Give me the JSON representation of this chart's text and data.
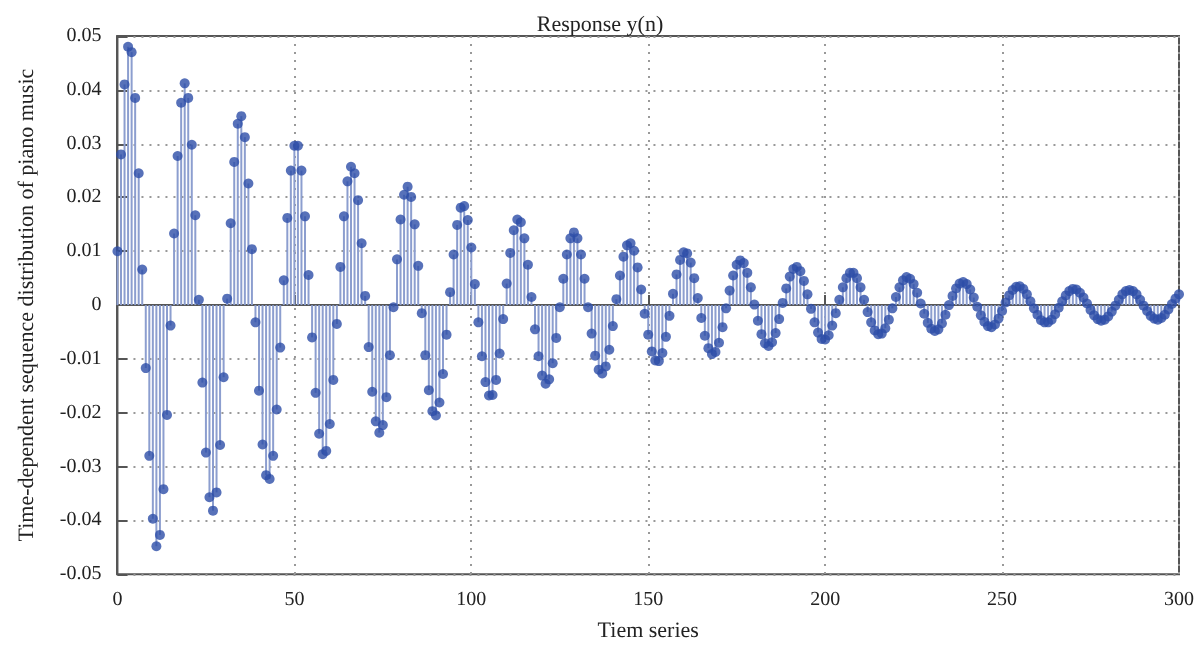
{
  "chart_data": {
    "type": "lollipop",
    "title": "Response y(n)",
    "xlabel": "Tiem series",
    "ylabel": "Time-dependent sequence distribution of piano music",
    "x": [
      0,
      1,
      2,
      3,
      4,
      5,
      6,
      7,
      8,
      9,
      10,
      11,
      12,
      13,
      14,
      15,
      16,
      17,
      18,
      19,
      20,
      21,
      22,
      23,
      24,
      25,
      26,
      27,
      28,
      29,
      30,
      31,
      32,
      33,
      34,
      35,
      36,
      37,
      38,
      39,
      40,
      41,
      42,
      43,
      44,
      45,
      46,
      47,
      48,
      49,
      50,
      51,
      52,
      53,
      54,
      55,
      56,
      57,
      58,
      59,
      60,
      61,
      62,
      63,
      64,
      65,
      66,
      67,
      68,
      69,
      70,
      71,
      72,
      73,
      74,
      75,
      76,
      77,
      78,
      79,
      80,
      81,
      82,
      83,
      84,
      85,
      86,
      87,
      88,
      89,
      90,
      91,
      92,
      93,
      94,
      95,
      96,
      97,
      98,
      99,
      100,
      101,
      102,
      103,
      104,
      105,
      106,
      107,
      108,
      109,
      110,
      111,
      112,
      113,
      114,
      115,
      116,
      117,
      118,
      119,
      120,
      121,
      122,
      123,
      124,
      125,
      126,
      127,
      128,
      129,
      130,
      131,
      132,
      133,
      134,
      135,
      136,
      137,
      138,
      139,
      140,
      141,
      142,
      143,
      144,
      145,
      146,
      147,
      148,
      149,
      150,
      151,
      152,
      153,
      154,
      155,
      156,
      157,
      158,
      159,
      160,
      161,
      162,
      163,
      164,
      165,
      166,
      167,
      168,
      169,
      170,
      171,
      172,
      173,
      174,
      175,
      176,
      177,
      178,
      179,
      180,
      181,
      182,
      183,
      184,
      185,
      186,
      187,
      188,
      189,
      190,
      191,
      192,
      193,
      194,
      195,
      196,
      197,
      198,
      199,
      200,
      201,
      202,
      203,
      204,
      205,
      206,
      207,
      208,
      209,
      210,
      211,
      212,
      213,
      214,
      215,
      216,
      217,
      218,
      219,
      220,
      221,
      222,
      223,
      224,
      225,
      226,
      227,
      228,
      229,
      230,
      231,
      232,
      233,
      234,
      235,
      236,
      237,
      238,
      239,
      240,
      241,
      242,
      243,
      244,
      245,
      246,
      247,
      248,
      249,
      250,
      251,
      252,
      253,
      254,
      255,
      256,
      257,
      258,
      259,
      260,
      261,
      262,
      263,
      264,
      265,
      266,
      267,
      268,
      269,
      270,
      271,
      272,
      273,
      274,
      275,
      276,
      277,
      278,
      279,
      280,
      281,
      282,
      283,
      284,
      285,
      286,
      287,
      288,
      289,
      290,
      291,
      292,
      293,
      294,
      295,
      296,
      297,
      298,
      299,
      300
    ],
    "values": [
      0.01,
      0.028,
      0.041,
      0.048,
      0.047,
      0.0385,
      0.0245,
      0.0066,
      -0.0117,
      -0.028,
      -0.0397,
      -0.0448,
      -0.0427,
      -0.0342,
      -0.0204,
      -0.0038,
      0.0133,
      0.0277,
      0.0376,
      0.0412,
      0.0385,
      0.0298,
      0.0167,
      0.001,
      -0.0144,
      -0.0274,
      -0.0357,
      -0.0382,
      -0.0348,
      -0.026,
      -0.0134,
      0.0012,
      0.0152,
      0.0266,
      0.0337,
      0.0351,
      0.0312,
      0.0226,
      0.0104,
      -0.0032,
      -0.0159,
      -0.0259,
      -0.0316,
      -0.0323,
      -0.028,
      -0.0194,
      -0.0079,
      0.0046,
      0.0162,
      0.025,
      0.0296,
      0.0296,
      0.025,
      0.0165,
      0.0056,
      -0.006,
      -0.0163,
      -0.0239,
      -0.0277,
      -0.0271,
      -0.0221,
      -0.0139,
      -0.0035,
      0.0071,
      0.0165,
      0.023,
      0.0257,
      0.0245,
      0.0195,
      0.0115,
      0.0017,
      -0.0078,
      -0.0161,
      -0.0216,
      -0.0237,
      -0.0223,
      -0.0171,
      -0.0093,
      -0.0004,
      0.0085,
      0.0159,
      0.0205,
      0.022,
      0.0201,
      0.015,
      0.0073,
      -0.0015,
      -0.0093,
      -0.0158,
      -0.0197,
      -0.0205,
      -0.0181,
      -0.0128,
      -0.0055,
      0.0024,
      0.0094,
      0.0149,
      0.0181,
      0.0184,
      0.0158,
      0.0107,
      0.0039,
      -0.0032,
      -0.0095,
      -0.0143,
      -0.0168,
      -0.0167,
      -0.0139,
      -0.009,
      -0.0026,
      0.004,
      0.0097,
      0.0139,
      0.0159,
      0.0154,
      0.0124,
      0.0075,
      0.0015,
      -0.0045,
      -0.0095,
      -0.0131,
      -0.0146,
      -0.0138,
      -0.0108,
      -0.0061,
      -0.0004,
      0.0049,
      0.0094,
      0.0124,
      0.0135,
      0.0124,
      0.0094,
      0.0049,
      -0.0004,
      -0.0053,
      -0.0094,
      -0.012,
      -0.0127,
      -0.0114,
      -0.0083,
      -0.0039,
      0.0011,
      0.0055,
      0.009,
      0.0111,
      0.0115,
      0.0101,
      0.007,
      0.0029,
      -0.0016,
      -0.0055,
      -0.0086,
      -0.0103,
      -0.0104,
      -0.0089,
      -0.0059,
      -0.002,
      0.0021,
      0.0057,
      0.0084,
      0.0098,
      0.0096,
      0.0079,
      0.005,
      0.0013,
      -0.0024,
      -0.0057,
      -0.008,
      -0.0091,
      -0.0087,
      -0.007,
      -0.0041,
      -0.0006,
      0.0027,
      0.0055,
      0.0075,
      0.0083,
      0.0078,
      0.006,
      0.0033,
      0.0001,
      -0.0029,
      -0.0054,
      -0.0071,
      -0.0076,
      -0.0069,
      -0.0052,
      -0.0026,
      0.0004,
      0.0031,
      0.0053,
      0.0067,
      0.0071,
      0.0063,
      0.0045,
      0.002,
      -0.0007,
      -0.0032,
      -0.0051,
      -0.0063,
      -0.0064,
      -0.0056,
      -0.0038,
      -0.0015,
      0.001,
      0.0033,
      0.005,
      0.006,
      0.006,
      0.005,
      0.0033,
      0.001,
      -0.0013,
      -0.0032,
      -0.0047,
      -0.0054,
      -0.0053,
      -0.0043,
      -0.0027,
      -0.0006,
      0.0015,
      0.0033,
      0.0046,
      0.0052,
      0.0049,
      0.0039,
      0.0023,
      0.0003,
      -0.0016,
      -0.0033,
      -0.0044,
      -0.0048,
      -0.0045,
      -0.0034,
      -0.0018,
      0.0,
      0.0017,
      0.0031,
      0.004,
      0.0043,
      0.0039,
      0.0029,
      0.0014,
      -0.0003,
      -0.0019,
      -0.0031,
      -0.0039,
      -0.0041,
      -0.0036,
      -0.0025,
      -0.0011,
      0.0005,
      0.0018,
      0.0028,
      0.0034,
      0.0035,
      0.003,
      0.002,
      0.0007,
      -0.0006,
      -0.0018,
      -0.0028,
      -0.0032,
      -0.0032,
      -0.0027,
      -0.0017,
      -0.0005,
      0.0007,
      0.0018,
      0.0026,
      0.003,
      0.0029,
      0.0023,
      0.0014,
      0.0003,
      -0.0009,
      -0.0019,
      -0.0026,
      -0.0029,
      -0.0027,
      -0.0021,
      -0.0012,
      -0.0001,
      0.001,
      0.002,
      0.0026,
      0.0028,
      0.0026,
      0.002,
      0.001,
      -0.0001,
      -0.0011,
      -0.002,
      -0.0025,
      -0.0027,
      -0.0024,
      -0.0018,
      -0.0008,
      0.0002,
      0.0012,
      0.002
    ],
    "color": "#2d4ea8",
    "marker": "circle",
    "grid": true,
    "xlim": [
      0,
      300
    ],
    "xticks": [
      0,
      50,
      100,
      150,
      200,
      250,
      300
    ],
    "ylim": [
      -0.05,
      0.05
    ],
    "yticks": [
      -0.05,
      -0.04,
      -0.03,
      -0.02,
      -0.01,
      0,
      0.01,
      0.02,
      0.03,
      0.04,
      0.05
    ]
  }
}
